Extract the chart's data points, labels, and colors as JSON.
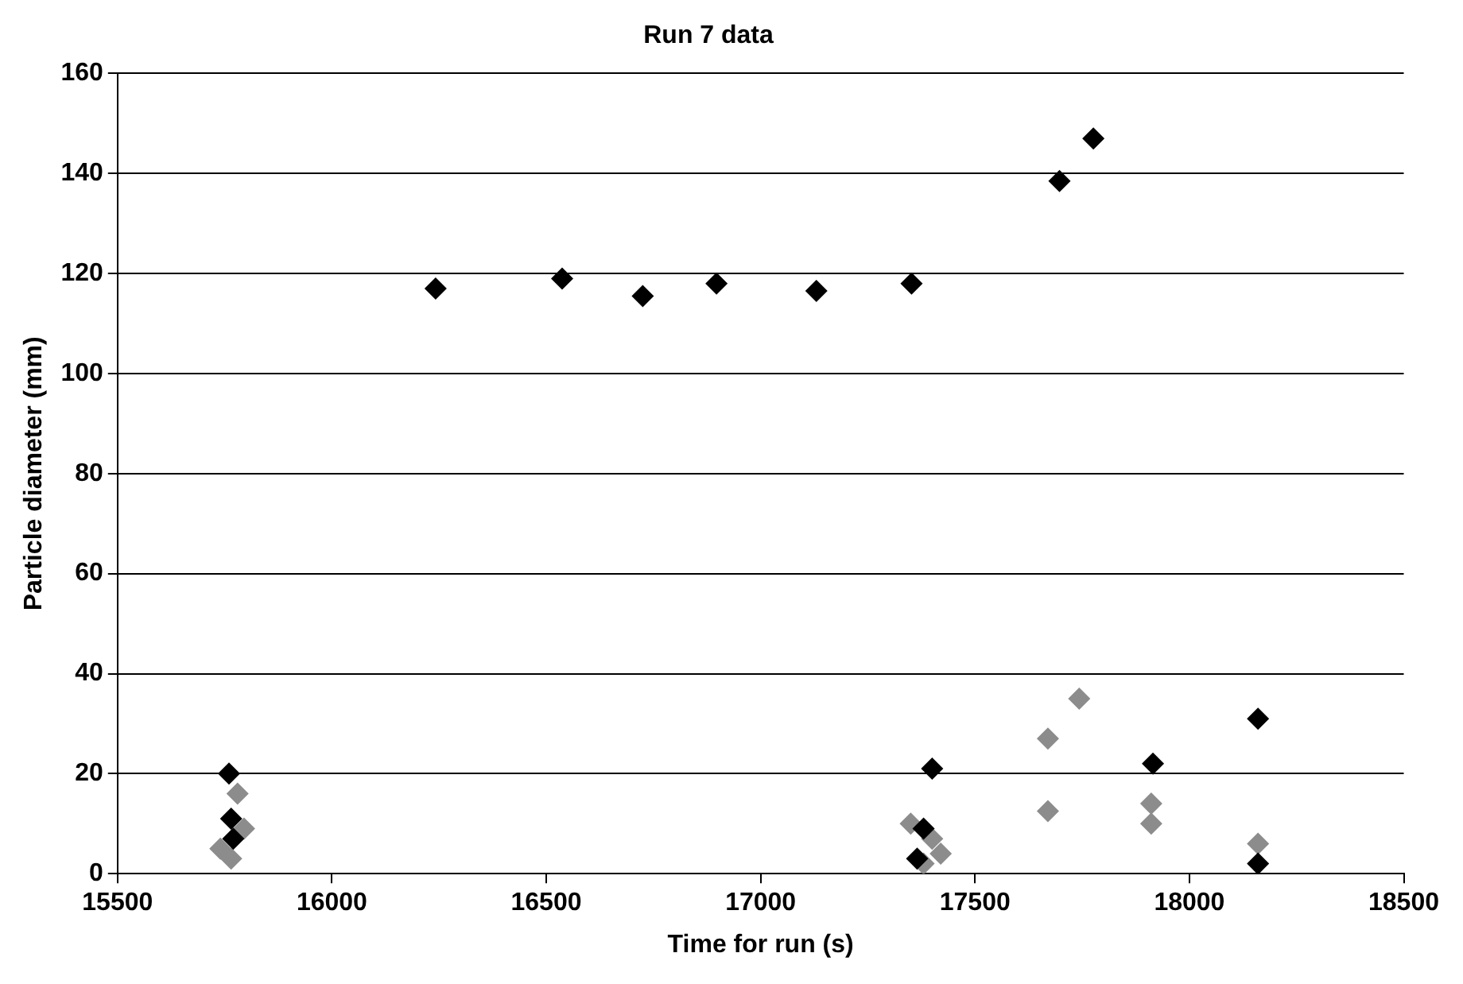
{
  "chart_data": {
    "type": "scatter",
    "title": "Run 7 data",
    "xlabel": "Time for run (s)",
    "ylabel": "Particle diameter (mm)",
    "xlim": [
      15500,
      18500
    ],
    "xticks": [
      15500,
      16000,
      16500,
      17000,
      17500,
      18000,
      18500
    ],
    "ylim": [
      0,
      160
    ],
    "yticks": [
      0,
      20,
      40,
      60,
      80,
      100,
      120,
      140,
      160
    ],
    "grid": "y",
    "marker": "diamond",
    "legend": false,
    "series": [
      {
        "color": "#000000",
        "x": [
          16242,
          16537,
          16725,
          16897,
          17130,
          17352,
          17697,
          17776,
          15760,
          15765,
          15770,
          17400,
          17915,
          18160,
          17380,
          17365,
          18160
        ],
        "values": [
          117,
          119,
          115.5,
          118,
          116.5,
          118,
          138.5,
          147,
          20,
          11,
          7,
          21,
          22,
          31,
          9,
          3,
          2
        ]
      },
      {
        "color": "#8c8c8c",
        "x": [
          15780,
          15795,
          15740,
          15765,
          17350,
          17400,
          17420,
          17380,
          17670,
          17670,
          17743,
          17911,
          17911,
          18160
        ],
        "values": [
          16,
          9,
          5,
          3,
          10,
          7,
          4,
          2,
          12.5,
          27,
          35,
          14,
          10,
          6
        ]
      }
    ]
  }
}
